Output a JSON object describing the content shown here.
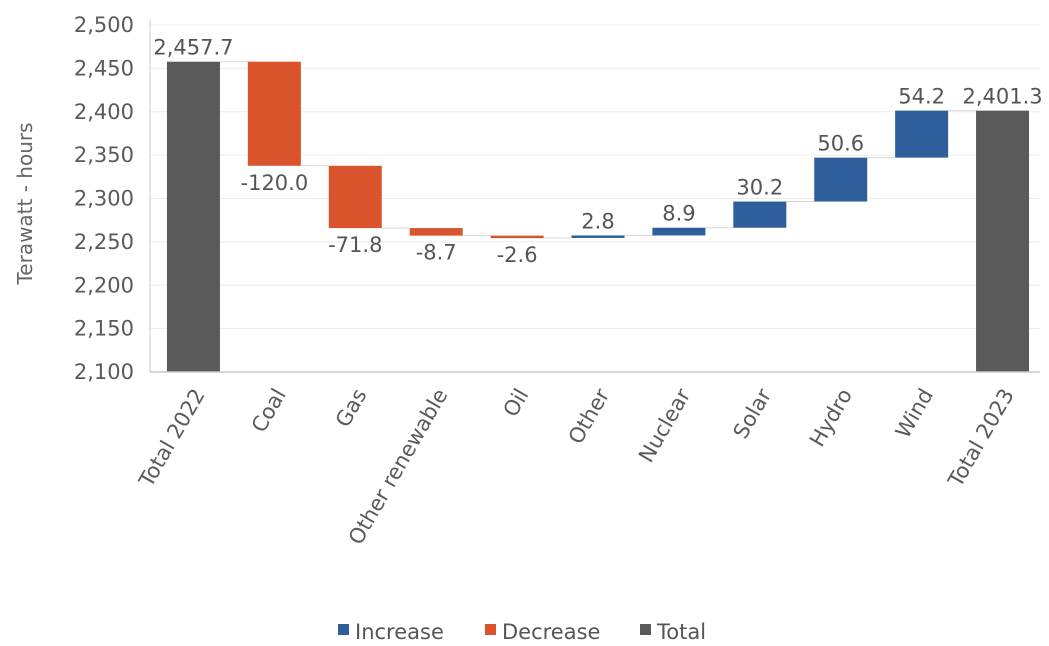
{
  "chart_data": {
    "type": "waterfall",
    "ylabel": "Terawatt - hours",
    "ylim": [
      2100,
      2500
    ],
    "yticks": [
      2100,
      2150,
      2200,
      2250,
      2300,
      2350,
      2400,
      2450,
      2500
    ],
    "ytick_labels": [
      "2,100",
      "2,150",
      "2,200",
      "2,250",
      "2,300",
      "2,350",
      "2,400",
      "2,450",
      "2,500"
    ],
    "grid": true,
    "legend_position": "bottom",
    "categories": [
      "Total 2022",
      "Coal",
      "Gas",
      "Other renewable",
      "Oil",
      "Other",
      "Nuclear",
      "Solar",
      "Hydro",
      "Wind",
      "Total 2023"
    ],
    "values": [
      2457.7,
      -120.0,
      -71.8,
      -8.7,
      -2.6,
      2.8,
      8.9,
      30.2,
      50.6,
      54.2,
      2401.3
    ],
    "kinds": [
      "total",
      "decrease",
      "decrease",
      "decrease",
      "decrease",
      "increase",
      "increase",
      "increase",
      "increase",
      "increase",
      "total"
    ],
    "data_labels": [
      "2,457.7",
      "-120.0",
      "-71.8",
      "-8.7",
      "-2.6",
      "2.8",
      "8.9",
      "30.2",
      "50.6",
      "54.2",
      "2,401.3"
    ],
    "legend": [
      {
        "key": "increase",
        "label": "Increase"
      },
      {
        "key": "decrease",
        "label": "Decrease"
      },
      {
        "key": "total",
        "label": "Total"
      }
    ],
    "colors": {
      "increase": "#2e5f9a",
      "decrease": "#d9542c",
      "total": "#5a5a5a",
      "grid": "#ececec",
      "axis": "#c8c8c8"
    }
  }
}
